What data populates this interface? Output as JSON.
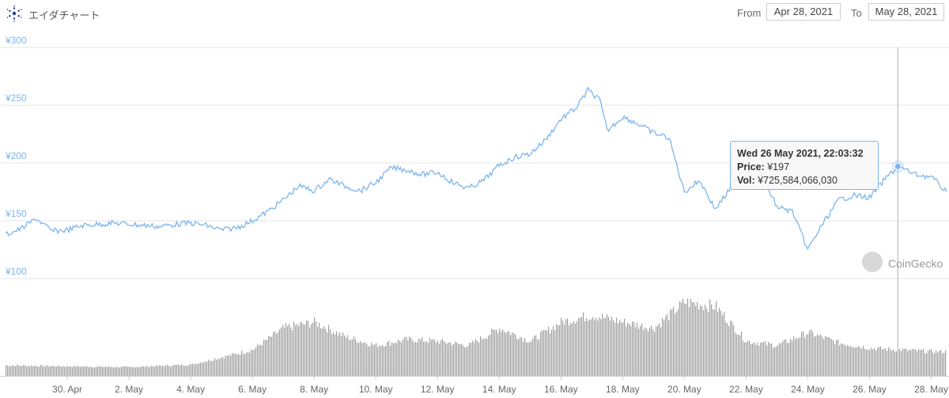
{
  "header": {
    "title": "エイダチャート",
    "from_label": "From",
    "from_date": "Apr 28, 2021",
    "to_label": "To",
    "to_date": "May 28, 2021"
  },
  "tooltip": {
    "datetime": "Wed 26 May 2021, 22:03:32",
    "price_label": "Price:",
    "price_value": "¥197",
    "vol_label": "Vol:",
    "vol_value": "¥725,584,066,030"
  },
  "watermark": "CoinGecko",
  "colors": {
    "line": "#7cb5ec",
    "bars": "#9e9e9e",
    "grid": "#e6e6e6",
    "axis_text": "#666666",
    "y_text": "#7cb5ec"
  },
  "chart_data": {
    "type": "line",
    "title": "",
    "currency": "JPY",
    "y_ticks": [
      "¥100",
      "¥150",
      "¥200",
      "¥250",
      "¥300"
    ],
    "ylim": [
      100,
      300
    ],
    "x_ticks": [
      "30. Apr",
      "2. May",
      "4. May",
      "6. May",
      "8. May",
      "10. May",
      "12. May",
      "14. May",
      "16. May",
      "18. May",
      "20. May",
      "22. May",
      "24. May",
      "26. May",
      "28. May"
    ],
    "xlim": [
      "2021-04-28",
      "2021-05-28"
    ],
    "series": [
      {
        "kind": "price",
        "points": [
          [
            "2021-04-28 00:00",
            138
          ],
          [
            "2021-04-28 12:00",
            143
          ],
          [
            "2021-04-29 00:00",
            152
          ],
          [
            "2021-04-29 12:00",
            141
          ],
          [
            "2021-04-30 00:00",
            142
          ],
          [
            "2021-04-30 12:00",
            146
          ],
          [
            "2021-05-01 00:00",
            147
          ],
          [
            "2021-05-01 12:00",
            148
          ],
          [
            "2021-05-02 00:00",
            147
          ],
          [
            "2021-05-02 12:00",
            146
          ],
          [
            "2021-05-03 00:00",
            145
          ],
          [
            "2021-05-03 12:00",
            147
          ],
          [
            "2021-05-04 00:00",
            148
          ],
          [
            "2021-05-04 12:00",
            146
          ],
          [
            "2021-05-05 00:00",
            142
          ],
          [
            "2021-05-05 12:00",
            144
          ],
          [
            "2021-05-06 00:00",
            150
          ],
          [
            "2021-05-06 12:00",
            158
          ],
          [
            "2021-05-07 00:00",
            168
          ],
          [
            "2021-05-07 12:00",
            180
          ],
          [
            "2021-05-08 00:00",
            176
          ],
          [
            "2021-05-08 12:00",
            186
          ],
          [
            "2021-05-09 00:00",
            180
          ],
          [
            "2021-05-09 12:00",
            176
          ],
          [
            "2021-05-10 00:00",
            183
          ],
          [
            "2021-05-10 12:00",
            196
          ],
          [
            "2021-05-11 00:00",
            194
          ],
          [
            "2021-05-11 12:00",
            190
          ],
          [
            "2021-05-12 00:00",
            192
          ],
          [
            "2021-05-12 12:00",
            183
          ],
          [
            "2021-05-13 00:00",
            178
          ],
          [
            "2021-05-13 12:00",
            185
          ],
          [
            "2021-05-14 00:00",
            198
          ],
          [
            "2021-05-14 12:00",
            205
          ],
          [
            "2021-05-15 00:00",
            208
          ],
          [
            "2021-05-15 12:00",
            220
          ],
          [
            "2021-05-16 00:00",
            238
          ],
          [
            "2021-05-16 12:00",
            248
          ],
          [
            "2021-05-16 21:00",
            263
          ],
          [
            "2021-05-17 06:00",
            255
          ],
          [
            "2021-05-17 12:00",
            228
          ],
          [
            "2021-05-18 00:00",
            240
          ],
          [
            "2021-05-18 12:00",
            234
          ],
          [
            "2021-05-19 00:00",
            226
          ],
          [
            "2021-05-19 12:00",
            222
          ],
          [
            "2021-05-20 00:00",
            175
          ],
          [
            "2021-05-20 12:00",
            185
          ],
          [
            "2021-05-21 00:00",
            160
          ],
          [
            "2021-05-21 12:00",
            178
          ],
          [
            "2021-05-22 00:00",
            200
          ],
          [
            "2021-05-22 12:00",
            190
          ],
          [
            "2021-05-23 00:00",
            162
          ],
          [
            "2021-05-23 12:00",
            158
          ],
          [
            "2021-05-24 00:00",
            125
          ],
          [
            "2021-05-24 12:00",
            148
          ],
          [
            "2021-05-25 00:00",
            168
          ],
          [
            "2021-05-25 12:00",
            172
          ],
          [
            "2021-05-26 00:00",
            170
          ],
          [
            "2021-05-26 12:00",
            186
          ],
          [
            "2021-05-26 22:00",
            197
          ],
          [
            "2021-05-27 12:00",
            190
          ],
          [
            "2021-05-28 00:00",
            188
          ],
          [
            "2021-05-28 12:00",
            175
          ]
        ]
      },
      {
        "kind": "volume",
        "relative_levels": [
          [
            "2021-04-28",
            0.12
          ],
          [
            "2021-04-30",
            0.11
          ],
          [
            "2021-05-02",
            0.1
          ],
          [
            "2021-05-04",
            0.13
          ],
          [
            "2021-05-06",
            0.3
          ],
          [
            "2021-05-07",
            0.55
          ],
          [
            "2021-05-08",
            0.62
          ],
          [
            "2021-05-09",
            0.45
          ],
          [
            "2021-05-10",
            0.35
          ],
          [
            "2021-05-11",
            0.42
          ],
          [
            "2021-05-12",
            0.4
          ],
          [
            "2021-05-13",
            0.35
          ],
          [
            "2021-05-14",
            0.55
          ],
          [
            "2021-05-15",
            0.4
          ],
          [
            "2021-05-16",
            0.62
          ],
          [
            "2021-05-17",
            0.7
          ],
          [
            "2021-05-18",
            0.62
          ],
          [
            "2021-05-19",
            0.55
          ],
          [
            "2021-05-20",
            0.85
          ],
          [
            "2021-05-21",
            0.8
          ],
          [
            "2021-05-22",
            0.4
          ],
          [
            "2021-05-23",
            0.35
          ],
          [
            "2021-05-24",
            0.5
          ],
          [
            "2021-05-25",
            0.38
          ],
          [
            "2021-05-26",
            0.32
          ],
          [
            "2021-05-27",
            0.3
          ],
          [
            "2021-05-28",
            0.28
          ]
        ]
      }
    ],
    "hover": {
      "time": "2021-05-26 22:03",
      "price": 197
    }
  }
}
